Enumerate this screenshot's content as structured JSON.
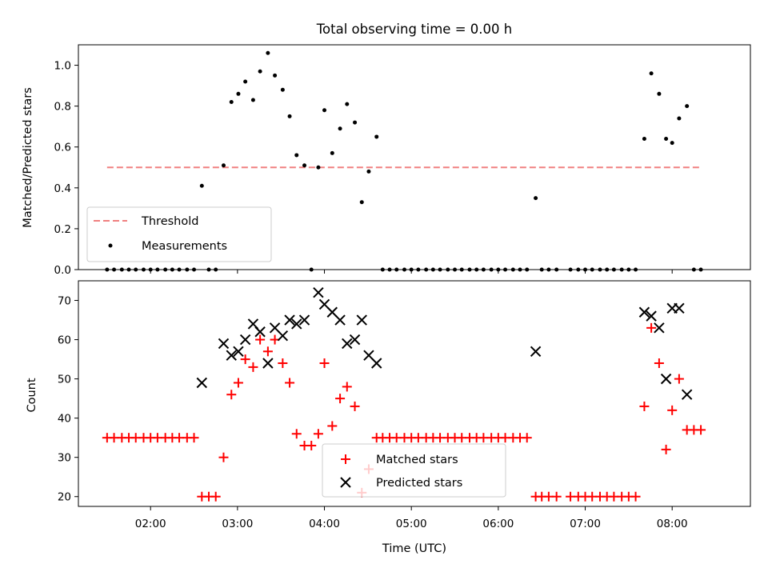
{
  "chart_data": [
    {
      "type": "scatter",
      "title": "Total observing time = 0.00 h",
      "xlabel": "",
      "ylabel": "Matched/Predicted stars",
      "xlim": [
        1.17,
        8.9
      ],
      "ylim": [
        0.0,
        1.1
      ],
      "xticks": [
        2,
        3,
        4,
        5,
        6,
        7,
        8
      ],
      "yticks": [
        0.0,
        0.2,
        0.4,
        0.6,
        0.8,
        1.0
      ],
      "ytick_labels": [
        "0.0",
        "0.2",
        "0.4",
        "0.6",
        "0.8",
        "1.0"
      ],
      "legend": {
        "position": "lower-left",
        "entries": [
          "Threshold",
          "Measurements"
        ]
      },
      "threshold": {
        "name": "Threshold",
        "y": 0.5,
        "x_range": [
          1.5,
          8.33
        ],
        "color": "#f08080",
        "style": "dashed"
      },
      "series": [
        {
          "name": "Measurements",
          "color": "#000000",
          "marker": "dot",
          "points": [
            [
              1.5,
              0
            ],
            [
              1.58,
              0
            ],
            [
              1.67,
              0
            ],
            [
              1.75,
              0
            ],
            [
              1.83,
              0
            ],
            [
              1.92,
              0
            ],
            [
              2.0,
              0
            ],
            [
              2.08,
              0
            ],
            [
              2.17,
              0
            ],
            [
              2.25,
              0
            ],
            [
              2.33,
              0
            ],
            [
              2.42,
              0
            ],
            [
              2.5,
              0
            ],
            [
              2.59,
              0.41
            ],
            [
              2.67,
              0
            ],
            [
              2.75,
              0
            ],
            [
              2.84,
              0.51
            ],
            [
              2.93,
              0.82
            ],
            [
              3.01,
              0.86
            ],
            [
              3.09,
              0.92
            ],
            [
              3.18,
              0.83
            ],
            [
              3.26,
              0.97
            ],
            [
              3.35,
              1.06
            ],
            [
              3.43,
              0.95
            ],
            [
              3.52,
              0.88
            ],
            [
              3.6,
              0.75
            ],
            [
              3.68,
              0.56
            ],
            [
              3.77,
              0.51
            ],
            [
              3.85,
              0
            ],
            [
              3.93,
              0.5
            ],
            [
              4.0,
              0.78
            ],
            [
              4.09,
              0.57
            ],
            [
              4.18,
              0.69
            ],
            [
              4.26,
              0.81
            ],
            [
              4.35,
              0.72
            ],
            [
              4.43,
              0.33
            ],
            [
              4.51,
              0.48
            ],
            [
              4.6,
              0.65
            ],
            [
              4.67,
              0
            ],
            [
              4.75,
              0
            ],
            [
              4.83,
              0
            ],
            [
              4.92,
              0
            ],
            [
              5.0,
              0
            ],
            [
              5.08,
              0
            ],
            [
              5.17,
              0
            ],
            [
              5.25,
              0
            ],
            [
              5.33,
              0
            ],
            [
              5.42,
              0
            ],
            [
              5.5,
              0
            ],
            [
              5.58,
              0
            ],
            [
              5.67,
              0
            ],
            [
              5.75,
              0
            ],
            [
              5.83,
              0
            ],
            [
              5.92,
              0
            ],
            [
              6.0,
              0
            ],
            [
              6.08,
              0
            ],
            [
              6.17,
              0
            ],
            [
              6.25,
              0
            ],
            [
              6.33,
              0
            ],
            [
              6.43,
              0.35
            ],
            [
              6.5,
              0
            ],
            [
              6.58,
              0
            ],
            [
              6.67,
              0
            ],
            [
              6.83,
              0
            ],
            [
              6.92,
              0
            ],
            [
              7.0,
              0
            ],
            [
              7.08,
              0
            ],
            [
              7.17,
              0
            ],
            [
              7.25,
              0
            ],
            [
              7.33,
              0
            ],
            [
              7.42,
              0
            ],
            [
              7.5,
              0
            ],
            [
              7.58,
              0
            ],
            [
              7.68,
              0.64
            ],
            [
              7.76,
              0.96
            ],
            [
              7.85,
              0.86
            ],
            [
              7.93,
              0.64
            ],
            [
              8.0,
              0.62
            ],
            [
              8.08,
              0.74
            ],
            [
              8.17,
              0.8
            ],
            [
              8.25,
              0
            ],
            [
              8.33,
              0
            ]
          ]
        }
      ]
    },
    {
      "type": "scatter",
      "title": "",
      "xlabel": "Time (UTC)",
      "ylabel": "Count",
      "xlim": [
        1.17,
        8.9
      ],
      "ylim": [
        17.5,
        75
      ],
      "xticks": [
        2,
        3,
        4,
        5,
        6,
        7,
        8
      ],
      "xtick_labels": [
        "02:00",
        "03:00",
        "04:00",
        "05:00",
        "06:00",
        "07:00",
        "08:00"
      ],
      "yticks": [
        20,
        30,
        40,
        50,
        60,
        70
      ],
      "ytick_labels": [
        "20",
        "30",
        "40",
        "50",
        "60",
        "70"
      ],
      "legend": {
        "position": "lower-center",
        "entries": [
          "Matched stars",
          "Predicted stars"
        ]
      },
      "series": [
        {
          "name": "Matched stars",
          "color": "#ff0000",
          "marker": "plus",
          "points": [
            [
              1.5,
              35
            ],
            [
              1.58,
              35
            ],
            [
              1.67,
              35
            ],
            [
              1.75,
              35
            ],
            [
              1.83,
              35
            ],
            [
              1.92,
              35
            ],
            [
              2.0,
              35
            ],
            [
              2.08,
              35
            ],
            [
              2.17,
              35
            ],
            [
              2.25,
              35
            ],
            [
              2.33,
              35
            ],
            [
              2.42,
              35
            ],
            [
              2.5,
              35
            ],
            [
              2.59,
              20
            ],
            [
              2.67,
              20
            ],
            [
              2.75,
              20
            ],
            [
              2.84,
              30
            ],
            [
              2.93,
              46
            ],
            [
              3.01,
              49
            ],
            [
              3.09,
              55
            ],
            [
              3.18,
              53
            ],
            [
              3.26,
              60
            ],
            [
              3.35,
              57
            ],
            [
              3.43,
              60
            ],
            [
              3.52,
              54
            ],
            [
              3.6,
              49
            ],
            [
              3.68,
              36
            ],
            [
              3.77,
              33
            ],
            [
              3.85,
              33
            ],
            [
              3.93,
              36
            ],
            [
              4.0,
              54
            ],
            [
              4.09,
              38
            ],
            [
              4.18,
              45
            ],
            [
              4.26,
              48
            ],
            [
              4.35,
              43
            ],
            [
              4.43,
              21
            ],
            [
              4.51,
              27
            ],
            [
              4.6,
              35
            ],
            [
              4.67,
              35
            ],
            [
              4.75,
              35
            ],
            [
              4.83,
              35
            ],
            [
              4.92,
              35
            ],
            [
              5.0,
              35
            ],
            [
              5.08,
              35
            ],
            [
              5.17,
              35
            ],
            [
              5.25,
              35
            ],
            [
              5.33,
              35
            ],
            [
              5.42,
              35
            ],
            [
              5.5,
              35
            ],
            [
              5.58,
              35
            ],
            [
              5.67,
              35
            ],
            [
              5.75,
              35
            ],
            [
              5.83,
              35
            ],
            [
              5.92,
              35
            ],
            [
              6.0,
              35
            ],
            [
              6.08,
              35
            ],
            [
              6.17,
              35
            ],
            [
              6.25,
              35
            ],
            [
              6.33,
              35
            ],
            [
              6.43,
              20
            ],
            [
              6.5,
              20
            ],
            [
              6.58,
              20
            ],
            [
              6.67,
              20
            ],
            [
              6.83,
              20
            ],
            [
              6.92,
              20
            ],
            [
              7.0,
              20
            ],
            [
              7.08,
              20
            ],
            [
              7.17,
              20
            ],
            [
              7.25,
              20
            ],
            [
              7.33,
              20
            ],
            [
              7.42,
              20
            ],
            [
              7.5,
              20
            ],
            [
              7.58,
              20
            ],
            [
              7.68,
              43
            ],
            [
              7.76,
              63
            ],
            [
              7.85,
              54
            ],
            [
              7.93,
              32
            ],
            [
              8.0,
              42
            ],
            [
              8.08,
              50
            ],
            [
              8.17,
              37
            ],
            [
              8.25,
              37
            ],
            [
              8.33,
              37
            ]
          ]
        },
        {
          "name": "Predicted stars",
          "color": "#000000",
          "marker": "x",
          "points": [
            [
              2.59,
              49
            ],
            [
              2.84,
              59
            ],
            [
              2.93,
              56
            ],
            [
              3.01,
              57
            ],
            [
              3.09,
              60
            ],
            [
              3.18,
              64
            ],
            [
              3.26,
              62
            ],
            [
              3.35,
              54
            ],
            [
              3.43,
              63
            ],
            [
              3.52,
              61
            ],
            [
              3.6,
              65
            ],
            [
              3.68,
              64
            ],
            [
              3.77,
              65
            ],
            [
              3.93,
              72
            ],
            [
              4.0,
              69
            ],
            [
              4.09,
              67
            ],
            [
              4.18,
              65
            ],
            [
              4.26,
              59
            ],
            [
              4.35,
              60
            ],
            [
              4.43,
              65
            ],
            [
              4.51,
              56
            ],
            [
              4.6,
              54
            ],
            [
              6.43,
              57
            ],
            [
              7.68,
              67
            ],
            [
              7.76,
              66
            ],
            [
              7.85,
              63
            ],
            [
              7.93,
              50
            ],
            [
              8.0,
              68
            ],
            [
              8.08,
              68
            ],
            [
              8.17,
              46
            ]
          ]
        }
      ]
    }
  ]
}
